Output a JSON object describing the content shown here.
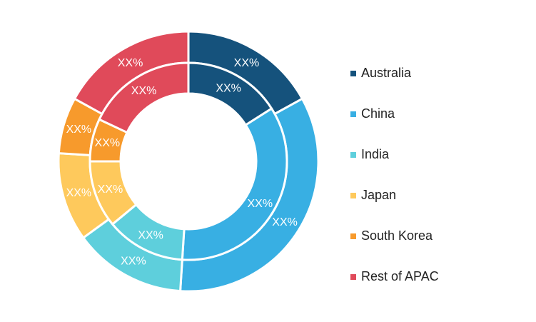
{
  "chart_data": {
    "type": "pie",
    "variant": "nested-donut",
    "title": "",
    "categories": [
      "Australia",
      "China",
      "India",
      "Japan",
      "South Korea",
      "Rest of APAC"
    ],
    "colors": [
      "#15527c",
      "#38afe3",
      "#5ecfdc",
      "#fec95c",
      "#f79a2c",
      "#e04a5a"
    ],
    "series": [
      {
        "ring": "inner",
        "values": [
          16,
          35,
          13,
          11,
          7,
          18
        ],
        "labels": [
          "XX%",
          "XX%",
          "XX%",
          "XX%",
          "XX%",
          "XX%"
        ]
      },
      {
        "ring": "outer",
        "values": [
          17,
          34,
          14,
          11,
          7,
          17
        ],
        "labels": [
          "XX%",
          "XX%",
          "XX%",
          "XX%",
          "XX%",
          "XX%"
        ]
      }
    ],
    "legend": {
      "position": "right",
      "entries": [
        "Australia",
        "China",
        "India",
        "Japan",
        "South Korea",
        "Rest of APAC"
      ]
    }
  }
}
